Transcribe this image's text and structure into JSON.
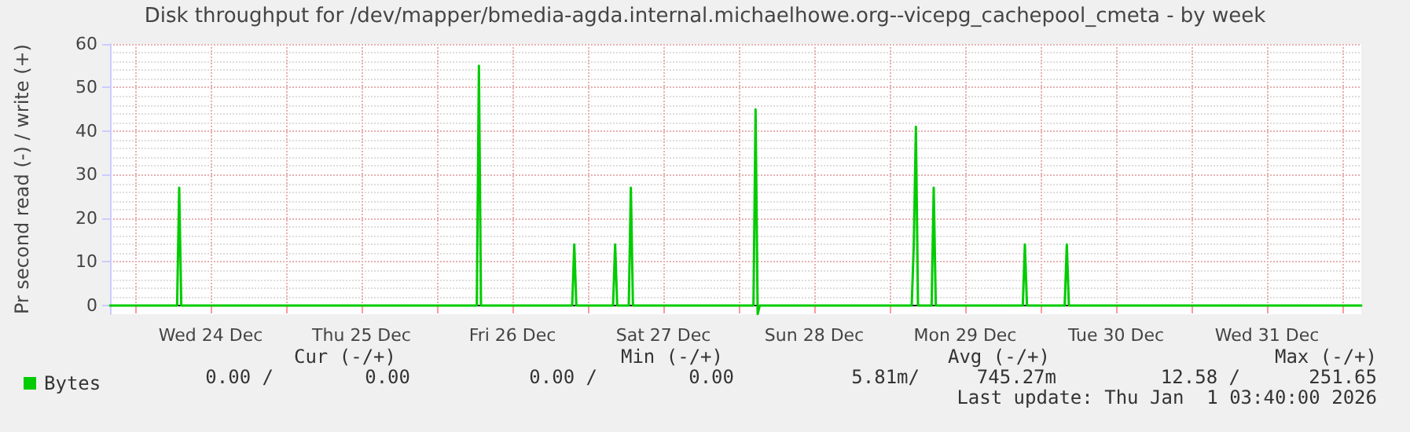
{
  "chart_data": {
    "type": "line",
    "title": "Disk throughput for /dev/mapper/bmedia-agda.internal.michaelhowe.org--vicepg_cachepool_cmeta - by week",
    "ylabel": "Pr second read (-) / write (+)",
    "xlim": [
      "2025-12-23T20:00",
      "2026-01-01T03:00"
    ],
    "xticks": [
      {
        "value": "2025-12-24T00:00",
        "label": null
      },
      {
        "value": "2025-12-24T12:00",
        "label": "Wed 24 Dec"
      },
      {
        "value": "2025-12-25T00:00",
        "label": null
      },
      {
        "value": "2025-12-25T12:00",
        "label": "Thu 25 Dec"
      },
      {
        "value": "2025-12-26T00:00",
        "label": null
      },
      {
        "value": "2025-12-26T12:00",
        "label": "Fri 26 Dec"
      },
      {
        "value": "2025-12-27T00:00",
        "label": null
      },
      {
        "value": "2025-12-27T12:00",
        "label": "Sat 27 Dec"
      },
      {
        "value": "2025-12-28T00:00",
        "label": null
      },
      {
        "value": "2025-12-28T12:00",
        "label": "Sun 28 Dec"
      },
      {
        "value": "2025-12-29T00:00",
        "label": null
      },
      {
        "value": "2025-12-29T12:00",
        "label": "Mon 29 Dec"
      },
      {
        "value": "2025-12-30T00:00",
        "label": null
      },
      {
        "value": "2025-12-30T12:00",
        "label": "Tue 30 Dec"
      },
      {
        "value": "2025-12-31T00:00",
        "label": null
      },
      {
        "value": "2025-12-31T12:00",
        "label": "Wed 31 Dec"
      },
      {
        "value": "2026-01-01T00:00",
        "label": null
      }
    ],
    "ylim": [
      -2,
      60
    ],
    "yticks": [
      0,
      10,
      20,
      30,
      40,
      50,
      60
    ],
    "grid": true,
    "legend": "bottom left",
    "marker": "none",
    "line_style": "solid",
    "series": [
      {
        "name": "Bytes",
        "color": "#00cc00",
        "x": [
          "2025-12-23T20:00",
          "2025-12-24T06:40",
          "2025-12-24T07:00",
          "2025-12-24T07:20",
          "2025-12-26T06:20",
          "2025-12-26T06:40",
          "2025-12-26T07:00",
          "2025-12-26T21:30",
          "2025-12-26T21:50",
          "2025-12-26T22:10",
          "2025-12-27T04:00",
          "2025-12-27T04:20",
          "2025-12-27T04:40",
          "2025-12-27T06:30",
          "2025-12-27T06:50",
          "2025-12-27T07:10",
          "2025-12-28T02:20",
          "2025-12-28T02:40",
          "2025-12-28T03:00",
          "2025-12-28T03:20",
          "2025-12-29T03:30",
          "2025-12-29T03:50",
          "2025-12-29T04:10",
          "2025-12-29T04:30",
          "2025-12-29T06:40",
          "2025-12-29T07:00",
          "2025-12-29T07:20",
          "2025-12-29T21:10",
          "2025-12-29T21:30",
          "2025-12-29T21:50",
          "2025-12-30T03:50",
          "2025-12-30T04:10",
          "2025-12-30T04:30",
          "2026-01-01T03:00"
        ],
        "values": [
          0,
          0,
          27,
          0,
          0,
          55,
          0,
          0,
          14,
          0,
          0,
          14,
          0,
          0,
          27,
          0,
          0,
          45,
          -2,
          0,
          0,
          14,
          41,
          0,
          0,
          27,
          0,
          0,
          14,
          0,
          0,
          14,
          0,
          0
        ]
      }
    ],
    "annotations": [
      "Cur (-/+)",
      "0.00 /",
      "0.00",
      "Min (-/+)",
      "0.00 /",
      "0.00",
      "Avg (-/+)",
      "5.81m/",
      "745.27m",
      "Max (-/+)",
      "12.58 /",
      "251.65",
      "Last update: Thu Jan  1 03:40:00 2026"
    ]
  }
}
